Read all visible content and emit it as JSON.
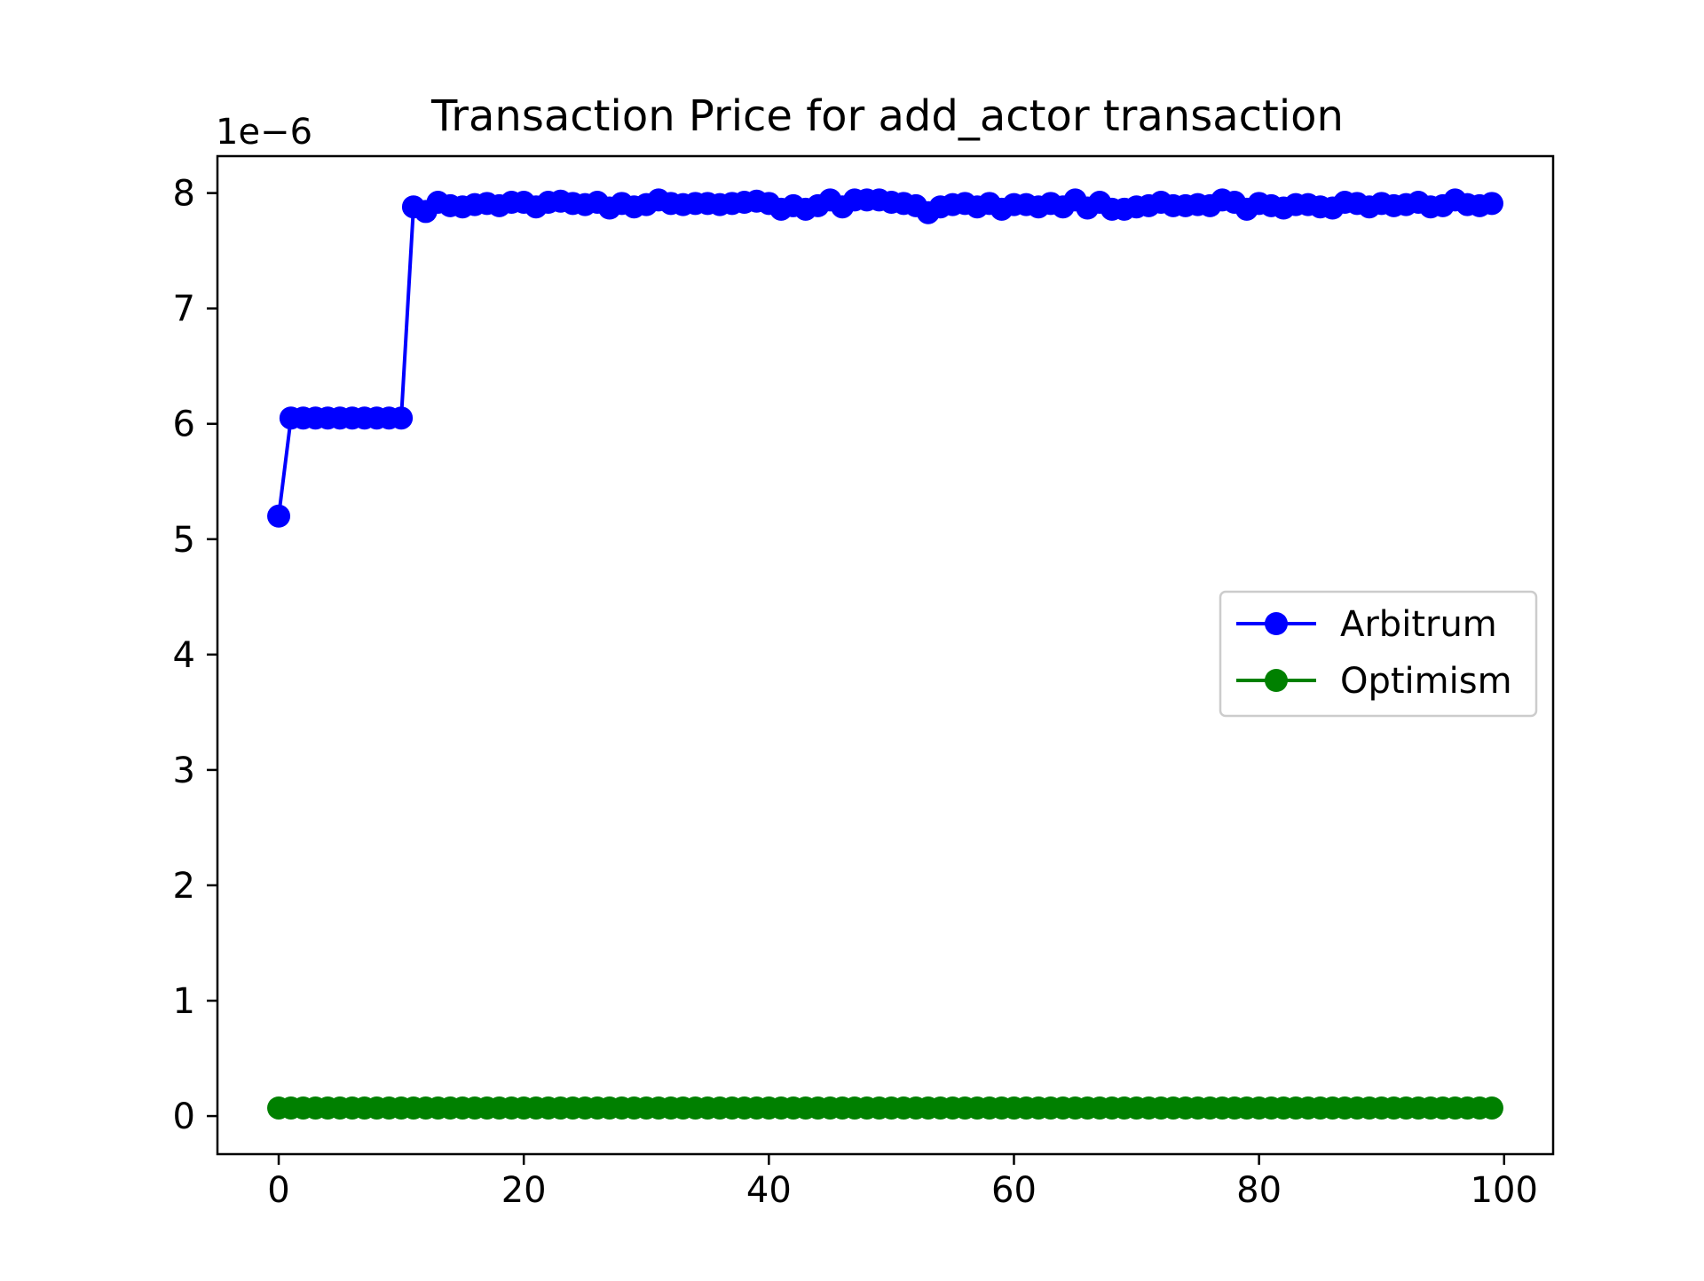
{
  "chart_data": {
    "type": "line",
    "title": "Transaction Price for add_actor transaction",
    "xlabel": "",
    "ylabel": "",
    "y_scale_label": "1e−6",
    "y_scale": 1e-06,
    "xlim": [
      -5,
      104
    ],
    "ylim": [
      -0.33,
      8.32
    ],
    "x_ticks": [
      0,
      20,
      40,
      60,
      80,
      100
    ],
    "y_ticks": [
      0,
      1,
      2,
      3,
      4,
      5,
      6,
      7,
      8
    ],
    "grid": false,
    "legend_position": "center-right",
    "x": [
      0,
      1,
      2,
      3,
      4,
      5,
      6,
      7,
      8,
      9,
      10,
      11,
      12,
      13,
      14,
      15,
      16,
      17,
      18,
      19,
      20,
      21,
      22,
      23,
      24,
      25,
      26,
      27,
      28,
      29,
      30,
      31,
      32,
      33,
      34,
      35,
      36,
      37,
      38,
      39,
      40,
      41,
      42,
      43,
      44,
      45,
      46,
      47,
      48,
      49,
      50,
      51,
      52,
      53,
      54,
      55,
      56,
      57,
      58,
      59,
      60,
      61,
      62,
      63,
      64,
      65,
      66,
      67,
      68,
      69,
      70,
      71,
      72,
      73,
      74,
      75,
      76,
      77,
      78,
      79,
      80,
      81,
      82,
      83,
      84,
      85,
      86,
      87,
      88,
      89,
      90,
      91,
      92,
      93,
      94,
      95,
      96,
      97,
      98,
      99
    ],
    "series": [
      {
        "name": "Arbitrum",
        "color": "#0000ff",
        "marker": "circle",
        "values": [
          5.2,
          6.05,
          6.05,
          6.05,
          6.05,
          6.05,
          6.05,
          6.05,
          6.05,
          6.05,
          6.05,
          7.88,
          7.84,
          7.92,
          7.89,
          7.88,
          7.9,
          7.91,
          7.89,
          7.92,
          7.92,
          7.88,
          7.92,
          7.93,
          7.91,
          7.9,
          7.92,
          7.87,
          7.91,
          7.88,
          7.9,
          7.94,
          7.91,
          7.9,
          7.91,
          7.91,
          7.9,
          7.91,
          7.92,
          7.93,
          7.91,
          7.86,
          7.89,
          7.86,
          7.89,
          7.94,
          7.88,
          7.94,
          7.94,
          7.94,
          7.92,
          7.91,
          7.89,
          7.83,
          7.88,
          7.9,
          7.91,
          7.88,
          7.91,
          7.86,
          7.9,
          7.9,
          7.88,
          7.91,
          7.88,
          7.94,
          7.87,
          7.92,
          7.86,
          7.86,
          7.88,
          7.89,
          7.92,
          7.89,
          7.89,
          7.9,
          7.89,
          7.94,
          7.92,
          7.86,
          7.91,
          7.89,
          7.87,
          7.9,
          7.9,
          7.88,
          7.87,
          7.92,
          7.91,
          7.88,
          7.91,
          7.89,
          7.9,
          7.92,
          7.88,
          7.89,
          7.94,
          7.9,
          7.89,
          7.91
        ]
      },
      {
        "name": "Optimism",
        "color": "#008000",
        "marker": "circle",
        "values": [
          0.07,
          0.07,
          0.07,
          0.07,
          0.07,
          0.07,
          0.07,
          0.07,
          0.07,
          0.07,
          0.07,
          0.07,
          0.07,
          0.07,
          0.07,
          0.07,
          0.07,
          0.07,
          0.07,
          0.07,
          0.07,
          0.07,
          0.07,
          0.07,
          0.07,
          0.07,
          0.07,
          0.07,
          0.07,
          0.07,
          0.07,
          0.07,
          0.07,
          0.07,
          0.07,
          0.07,
          0.07,
          0.07,
          0.07,
          0.07,
          0.07,
          0.07,
          0.07,
          0.07,
          0.07,
          0.07,
          0.07,
          0.07,
          0.07,
          0.07,
          0.07,
          0.07,
          0.07,
          0.07,
          0.07,
          0.07,
          0.07,
          0.07,
          0.07,
          0.07,
          0.07,
          0.07,
          0.07,
          0.07,
          0.07,
          0.07,
          0.07,
          0.07,
          0.07,
          0.07,
          0.07,
          0.07,
          0.07,
          0.07,
          0.07,
          0.07,
          0.07,
          0.07,
          0.07,
          0.07,
          0.07,
          0.07,
          0.07,
          0.07,
          0.07,
          0.07,
          0.07,
          0.07,
          0.07,
          0.07,
          0.07,
          0.07,
          0.07,
          0.07,
          0.07,
          0.07,
          0.07,
          0.07,
          0.07,
          0.07
        ]
      }
    ]
  }
}
